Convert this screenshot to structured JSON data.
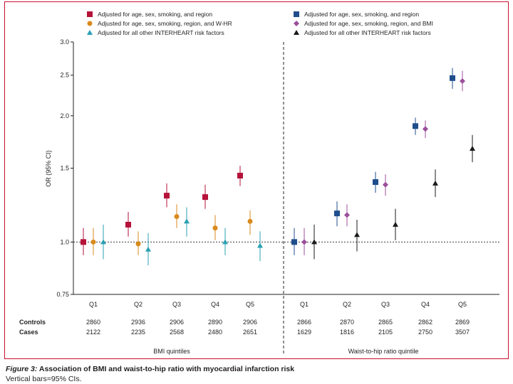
{
  "chart_data": {
    "type": "scatter",
    "title": "Association of BMI and waist-to-hip ratio with myocardial infarction risk",
    "ylabel": "OR (95% CI)",
    "yscale": "log",
    "ylim": [
      0.75,
      3.0
    ],
    "yticks": [
      "0.75",
      "1.0",
      "1.5",
      "2.0",
      "2.5",
      "3.0"
    ],
    "reference_line": 1.0,
    "panels": [
      {
        "xlabel": "BMI quintiles",
        "categories": [
          "Q1",
          "Q2",
          "Q3",
          "Q4",
          "Q5"
        ],
        "controls": [
          "2860",
          "2936",
          "2906",
          "2890",
          "2906"
        ],
        "cases": [
          "2122",
          "2235",
          "2568",
          "2480",
          "2651"
        ],
        "series": [
          {
            "name": "Adjusted for age, sex, smoking, and region",
            "marker": "square",
            "color": "#b5123a",
            "values": [
              1.0,
              1.1,
              1.29,
              1.28,
              1.44
            ],
            "lower": [
              0.93,
              1.03,
              1.21,
              1.2,
              1.36
            ],
            "upper": [
              1.08,
              1.18,
              1.38,
              1.37,
              1.52
            ]
          },
          {
            "name": "Adjusted for age, sex, smoking, region, and W-HR",
            "marker": "circle",
            "color": "#d98a1c",
            "values": [
              1.0,
              0.99,
              1.15,
              1.08,
              1.12
            ],
            "lower": [
              0.93,
              0.93,
              1.08,
              1.01,
              1.04
            ],
            "upper": [
              1.08,
              1.06,
              1.23,
              1.16,
              1.19
            ]
          },
          {
            "name": "Adjusted for all other INTERHEART risk factors",
            "marker": "triangle",
            "color": "#2aa0b3",
            "values": [
              1.0,
              0.96,
              1.12,
              1.0,
              0.98
            ],
            "lower": [
              0.91,
              0.88,
              1.03,
              0.93,
              0.9
            ],
            "upper": [
              1.1,
              1.05,
              1.21,
              1.08,
              1.06
            ]
          }
        ]
      },
      {
        "xlabel": "Waist-to-hip ratio quintile",
        "categories": [
          "Q1",
          "Q2",
          "Q3",
          "Q4",
          "Q5"
        ],
        "controls": [
          "2866",
          "2870",
          "2865",
          "2862",
          "2869"
        ],
        "cases": [
          "1629",
          "1816",
          "2105",
          "2750",
          "3507"
        ],
        "series": [
          {
            "name": "Adjusted for age, sex, smoking, and region",
            "marker": "square",
            "color": "#1f4e8c",
            "values": [
              1.0,
              1.17,
              1.39,
              1.89,
              2.46
            ],
            "lower": [
              0.93,
              1.09,
              1.31,
              1.8,
              2.32
            ],
            "upper": [
              1.08,
              1.25,
              1.47,
              1.98,
              2.6
            ]
          },
          {
            "name": "Adjusted for age, sex, smoking, region, and BMI",
            "marker": "diamond",
            "color": "#9b4f9b",
            "values": [
              1.0,
              1.16,
              1.37,
              1.86,
              2.42
            ],
            "lower": [
              0.93,
              1.09,
              1.29,
              1.77,
              2.29
            ],
            "upper": [
              1.08,
              1.23,
              1.45,
              1.95,
              2.56
            ]
          },
          {
            "name": "Adjusted for all other INTERHEART risk factors",
            "marker": "triangle",
            "color": "#1a1a1a",
            "values": [
              1.0,
              1.04,
              1.1,
              1.38,
              1.67
            ],
            "lower": [
              0.91,
              0.95,
              1.01,
              1.28,
              1.55
            ],
            "upper": [
              1.1,
              1.13,
              1.2,
              1.49,
              1.8
            ]
          }
        ]
      }
    ]
  },
  "table_labels": {
    "controls": "Controls",
    "cases": "Cases"
  },
  "caption": {
    "figure_label": "Figure 3:",
    "title": "Association of BMI and waist-to-hip ratio with myocardial infarction risk",
    "note": "Vertical bars=95% CIs."
  }
}
